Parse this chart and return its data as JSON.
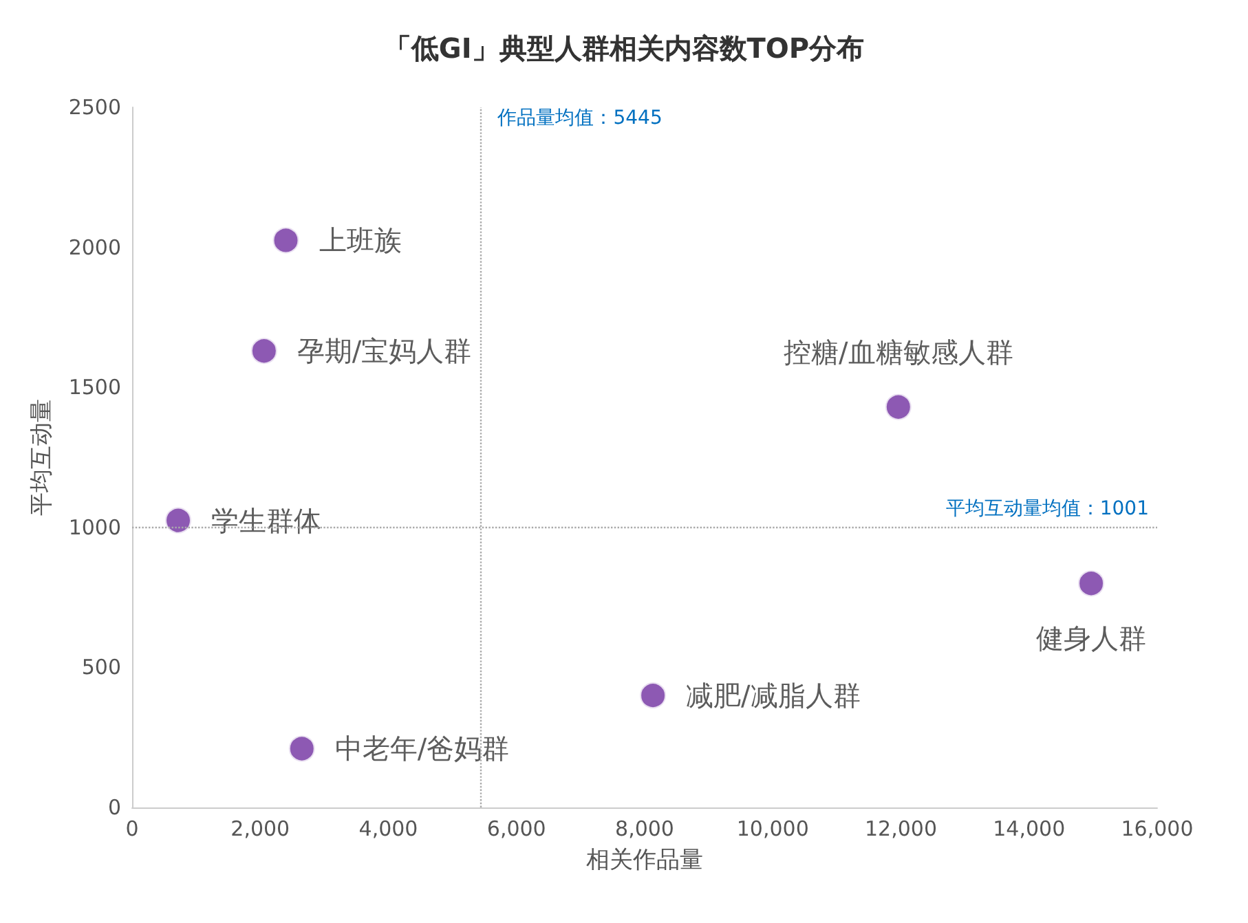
{
  "chart_data": {
    "type": "scatter",
    "title": "「低GI」典型人群相关内容数TOP分布",
    "xlabel": "相关作品量",
    "ylabel": "平均互动量",
    "x": [
      2400,
      2060,
      720,
      2650,
      8130,
      11960,
      14970
    ],
    "values": [
      2025,
      1630,
      1025,
      210,
      400,
      1430,
      800
    ],
    "color": "#7030a0",
    "marker": "circle",
    "grid": false,
    "xlim": [
      0,
      16000
    ],
    "xticks": [
      0,
      {
        "value": 2000,
        "label": "2,000"
      },
      {
        "value": 4000,
        "label": "4,000"
      },
      {
        "value": 6000,
        "label": "6,000"
      },
      {
        "value": 8000,
        "label": "8,000"
      },
      {
        "value": 10000,
        "label": "10,000"
      },
      {
        "value": 12000,
        "label": "12,000"
      },
      {
        "value": 14000,
        "label": "14,000"
      },
      {
        "value": 16000,
        "label": "16,000"
      }
    ],
    "ylim": [
      0,
      2500
    ],
    "yticks": [
      0,
      500,
      1000,
      1500,
      2000,
      2500
    ],
    "annotations": [
      {
        "text": "上班族",
        "x": 2400,
        "y": 2025
      },
      {
        "text": "孕期/宝妈人群",
        "x": 2060,
        "y": 1630
      },
      {
        "text": "学生群体",
        "x": 720,
        "y": 1025
      },
      {
        "text": "中老年/爸妈群",
        "x": 2650,
        "y": 210
      },
      {
        "text": "减肥/减脂人群",
        "x": 8130,
        "y": 400
      },
      {
        "text": "控糖/血糖敏感人群",
        "x": 11960,
        "y": 1430
      },
      {
        "text": "健身人群",
        "x": 14970,
        "y": 800
      }
    ],
    "ref_lines": [
      {
        "axis": "x",
        "value": 5445,
        "label": "作品量均值：5445",
        "color": "#aaaaaa",
        "line_style": "dotted"
      },
      {
        "axis": "y",
        "value": 1001,
        "label": "平均互动量均值：1001",
        "color": "#aaaaaa",
        "line_style": "dotted"
      }
    ]
  }
}
